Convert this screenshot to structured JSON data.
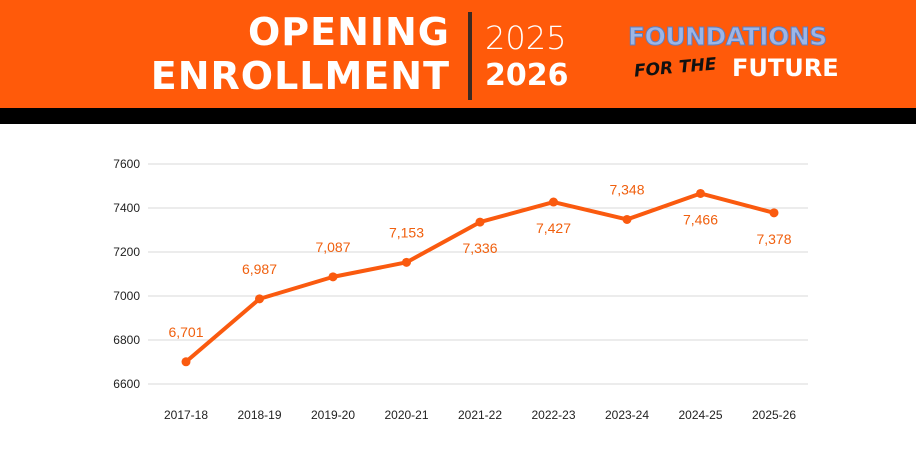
{
  "header": {
    "title_line1": "OPENING",
    "title_line2": "ENROLLMENT",
    "year_top": "2025",
    "year_bottom": "2026",
    "logo_line1": "FOUNDATIONS",
    "logo_for_the": "FOR THE",
    "logo_future": "FUTURE"
  },
  "colors": {
    "accent": "#ff5a0a",
    "line": "#fa5a0f",
    "label": "#f0600f"
  },
  "chart_data": {
    "type": "line",
    "title": "",
    "xlabel": "",
    "ylabel": "",
    "categories": [
      "2017-18",
      "2018-19",
      "2019-20",
      "2020-21",
      "2021-22",
      "2022-23",
      "2023-24",
      "2024-25",
      "2025-26"
    ],
    "series": [
      {
        "values": [
          6701,
          6987,
          7087,
          7153,
          7336,
          7427,
          7348,
          7466,
          7378
        ]
      }
    ],
    "data_labels": [
      "6,701",
      "6,987",
      "7,087",
      "7,153",
      "7,336",
      "7,427",
      "7,348",
      "7,466",
      "7,378"
    ],
    "label_position": [
      "above",
      "above",
      "above",
      "above",
      "below",
      "below",
      "above",
      "below",
      "below"
    ],
    "yticks": [
      6600,
      6800,
      7000,
      7200,
      7400,
      7600
    ],
    "ylim": [
      6600,
      7600
    ],
    "grid": true,
    "legend": "none"
  }
}
